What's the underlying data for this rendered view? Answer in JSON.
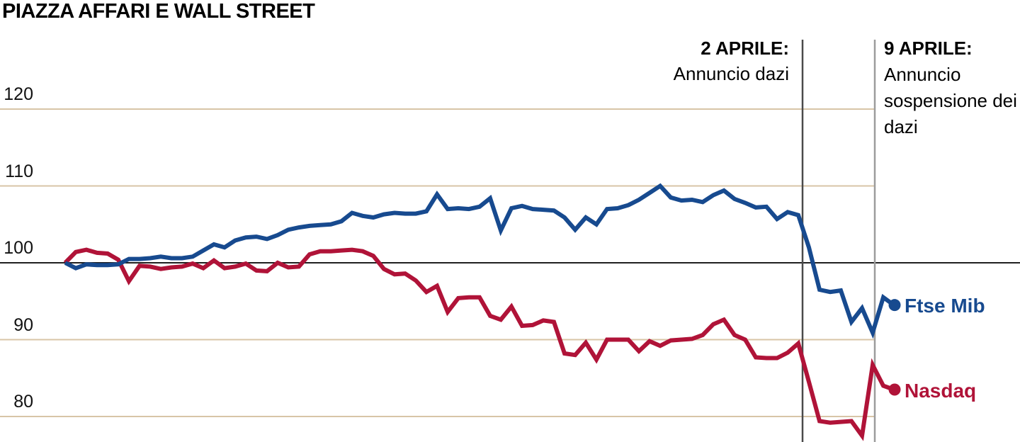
{
  "title": "PIAZZA AFFARI E WALL STREET",
  "colors": {
    "ftse_blue": "#174a8f",
    "nasdaq_red": "#b01338",
    "gridline_tan": "#d8c5a7",
    "baseline_black": "#000000",
    "marker_line_colors": [
      "#4a4a4a",
      "#9c9c9c"
    ],
    "text_black": "#000000"
  },
  "series_labels": {
    "ftse": "Ftse Mib",
    "nasdaq": "Nasdaq"
  },
  "chart_data": {
    "type": "line",
    "title": "PIAZZA AFFARI E WALL STREET",
    "ylabel": "",
    "xlabel": "",
    "ylim": [
      76,
      123
    ],
    "baseline_value": 100,
    "y_ticks": [
      120,
      110,
      100,
      90,
      80
    ],
    "grid": "horizontal",
    "legend_position": "right-end-of-line",
    "markers": [
      {
        "label_bold": "2 APRILE:",
        "label_text": "Annuncio dazi",
        "x_index": 69.4
      },
      {
        "label_bold": "9 APRILE:",
        "label_text": "Annuncio sospensione dei dazi",
        "x_index": 76.2
      }
    ],
    "series": [
      {
        "name": "Ftse Mib",
        "color": "#174a8f",
        "values": [
          100.0,
          99.3,
          99.8,
          99.7,
          99.7,
          99.8,
          100.5,
          100.5,
          100.6,
          100.8,
          100.6,
          100.6,
          100.8,
          101.6,
          102.4,
          102.0,
          102.9,
          103.3,
          103.4,
          103.1,
          103.6,
          104.3,
          104.6,
          104.8,
          104.9,
          105.0,
          105.4,
          106.5,
          106.1,
          105.9,
          106.3,
          106.5,
          106.4,
          106.4,
          106.7,
          108.9,
          107.0,
          107.1,
          107.0,
          107.3,
          108.4,
          104.2,
          107.1,
          107.4,
          107.0,
          106.9,
          106.8,
          105.9,
          104.3,
          105.9,
          105.0,
          107.0,
          107.1,
          107.5,
          108.2,
          109.1,
          110.0,
          108.5,
          108.1,
          108.2,
          107.9,
          108.8,
          109.4,
          108.3,
          107.8,
          107.2,
          107.3,
          105.7,
          106.6,
          106.2,
          102.0,
          96.5,
          96.2,
          96.4,
          92.3,
          94.1,
          90.9,
          95.5,
          94.5
        ]
      },
      {
        "name": "Nasdaq",
        "color": "#b01338",
        "values": [
          100.0,
          101.4,
          101.7,
          101.3,
          101.2,
          100.4,
          97.6,
          99.6,
          99.5,
          99.2,
          99.4,
          99.5,
          99.9,
          99.3,
          100.3,
          99.3,
          99.5,
          99.9,
          99.0,
          98.9,
          100.0,
          99.4,
          99.5,
          101.1,
          101.5,
          101.5,
          101.6,
          101.7,
          101.5,
          100.9,
          99.2,
          98.5,
          98.6,
          97.7,
          96.2,
          97.0,
          93.6,
          95.4,
          95.5,
          95.5,
          93.1,
          92.6,
          94.3,
          91.8,
          91.9,
          92.5,
          92.3,
          88.2,
          88.0,
          89.6,
          87.4,
          90.0,
          90.0,
          90.0,
          88.5,
          89.8,
          89.2,
          89.9,
          90.0,
          90.1,
          90.6,
          92.0,
          92.6,
          90.6,
          90.0,
          87.7,
          87.6,
          87.6,
          88.3,
          89.5,
          84.5,
          79.4,
          79.2,
          79.3,
          79.4,
          77.5,
          86.7,
          84.0,
          83.5
        ]
      }
    ]
  }
}
